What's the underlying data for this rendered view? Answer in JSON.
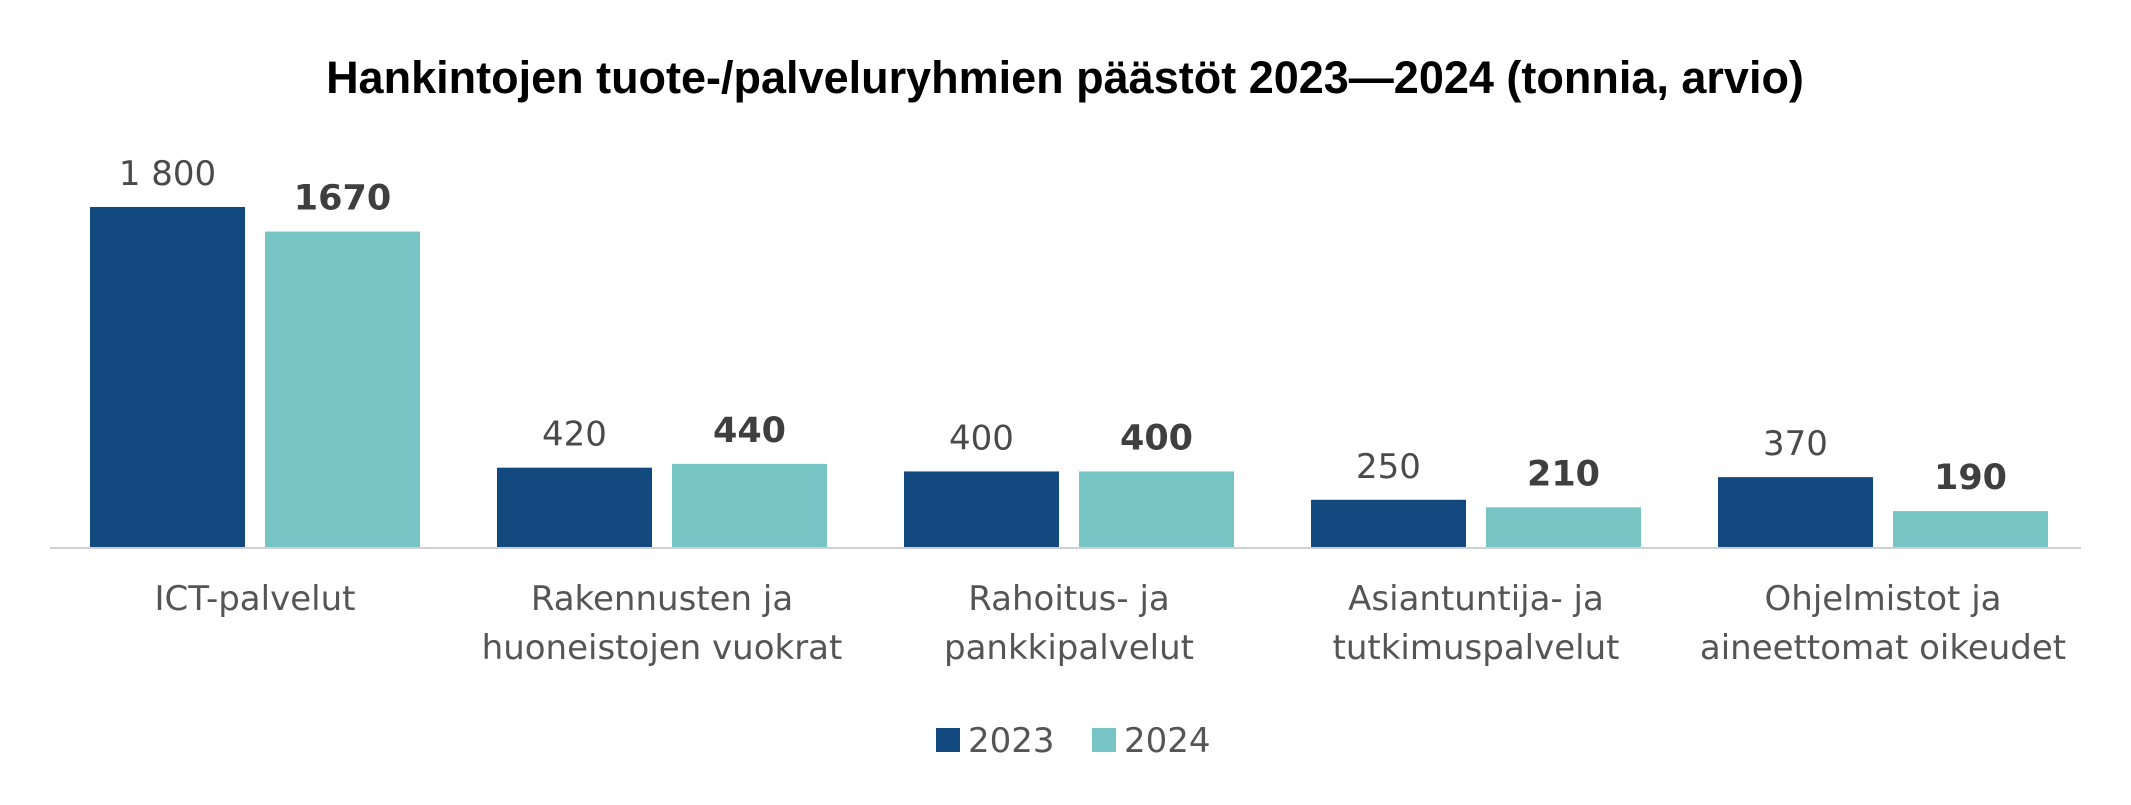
{
  "chart_data": {
    "type": "bar",
    "title": "Hankintojen tuote-/palveluryhmien päästöt 2023—2024 (tonnia, arvio)",
    "categories": [
      [
        "ICT-palvelut"
      ],
      [
        "Rakennusten ja",
        "huoneistojen vuokrat"
      ],
      [
        "Rahoitus- ja",
        "pankkipalvelut"
      ],
      [
        "Asiantuntija- ja",
        "tutkimuspalvelut"
      ],
      [
        "Ohjelmistot ja",
        "aineettomat oikeudet"
      ]
    ],
    "series": [
      {
        "name": "2023",
        "color": "#124a80",
        "values": [
          1800,
          420,
          400,
          250,
          370
        ],
        "labels": [
          "1 800",
          "420",
          "400",
          "250",
          "370"
        ],
        "label_weight": "normal"
      },
      {
        "name": "2024",
        "color": "#76c5c4",
        "values": [
          1670,
          440,
          400,
          210,
          190
        ],
        "labels": [
          "1670",
          "440",
          "400",
          "210",
          "190"
        ],
        "label_weight": "bold"
      }
    ],
    "ylim": [
      0,
      1800
    ],
    "grid": false,
    "legend_position": "bottom"
  }
}
